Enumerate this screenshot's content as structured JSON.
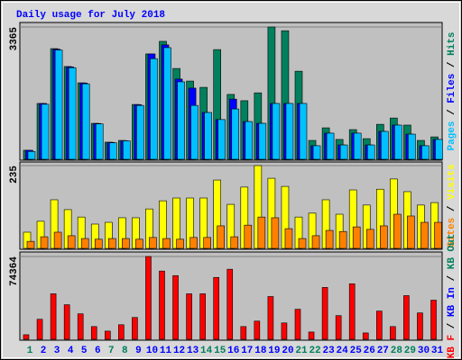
{
  "title": "Daily usage for July 2018",
  "categories": [
    "1",
    "2",
    "3",
    "4",
    "5",
    "6",
    "7",
    "8",
    "9",
    "10",
    "11",
    "12",
    "13",
    "14",
    "15",
    "16",
    "17",
    "18",
    "19",
    "20",
    "21",
    "22",
    "23",
    "24",
    "25",
    "26",
    "27",
    "28",
    "29",
    "30",
    "31"
  ],
  "category_colors": [
    "#00805c",
    "#0000ff",
    "#0000ff",
    "#0000ff",
    "#0000ff",
    "#0000ff",
    "#00805c",
    "#00805c",
    "#0000ff",
    "#0000ff",
    "#0000ff",
    "#0000ff",
    "#0000ff",
    "#00805c",
    "#00805c",
    "#0000ff",
    "#0000ff",
    "#0000ff",
    "#0000ff",
    "#0000ff",
    "#00805c",
    "#00805c",
    "#0000ff",
    "#0000ff",
    "#0000ff",
    "#0000ff",
    "#0000ff",
    "#00805c",
    "#00805c",
    "#0000ff",
    "#0000ff"
  ],
  "legend_separator": " / ",
  "chart_data": [
    {
      "type": "bar",
      "ylim": [
        0,
        3365
      ],
      "yticks": [
        3365
      ],
      "series": [
        {
          "name": "Hits",
          "color": "#00805c",
          "values": [
            230,
            1420,
            2815,
            2360,
            1945,
            915,
            435,
            480,
            1395,
            2680,
            3000,
            2310,
            1990,
            1830,
            2790,
            1650,
            1490,
            1690,
            3365,
            3270,
            2240,
            480,
            800,
            505,
            755,
            525,
            890,
            1050,
            870,
            480,
            570
          ]
        },
        {
          "name": "Files",
          "color": "#0000ff",
          "values": [
            229,
            1420,
            2800,
            2350,
            1940,
            910,
            430,
            475,
            1390,
            2680,
            2910,
            2040,
            1810,
            1190,
            1010,
            1530,
            960,
            915,
            1420,
            1420,
            1420,
            345,
            665,
            365,
            665,
            365,
            710,
            870,
            640,
            345,
            505
          ]
        },
        {
          "name": "Pages",
          "color": "#00c0ff",
          "values": [
            200,
            1400,
            2780,
            2330,
            1920,
            900,
            420,
            470,
            1370,
            2560,
            2840,
            1970,
            1370,
            1190,
            1010,
            1280,
            960,
            915,
            1420,
            1420,
            1420,
            345,
            665,
            365,
            665,
            365,
            710,
            870,
            640,
            345,
            505
          ]
        }
      ]
    },
    {
      "type": "bar",
      "ylim": [
        0,
        235
      ],
      "yticks": [
        235
      ],
      "series": [
        {
          "name": "Visits",
          "color": "#ffff00",
          "values": [
            46,
            77,
            138,
            110,
            89,
            69,
            74,
            87,
            87,
            112,
            135,
            143,
            143,
            143,
            194,
            125,
            174,
            235,
            199,
            176,
            89,
            100,
            138,
            97,
            166,
            123,
            168,
            197,
            161,
            123,
            130
          ]
        },
        {
          "name": "Sites",
          "color": "#ff8000",
          "values": [
            20,
            33,
            46,
            36,
            28,
            26,
            28,
            28,
            26,
            31,
            28,
            26,
            31,
            31,
            64,
            33,
            66,
            89,
            87,
            56,
            28,
            36,
            51,
            48,
            61,
            54,
            64,
            97,
            92,
            74,
            74
          ]
        }
      ]
    },
    {
      "type": "bar",
      "ylim": [
        0,
        74364
      ],
      "yticks": [
        74364
      ],
      "series": [
        {
          "name": "KB F",
          "color": "#ff0000",
          "values": [
            4090,
            17980,
            40860,
            31050,
            22880,
            11440,
            7350,
            13070,
            19610,
            74364,
            61290,
            57200,
            40860,
            40860,
            55570,
            62920,
            11440,
            16340,
            38410,
            14710,
            26970,
            6540,
            46580,
            21250,
            49850,
            5720,
            25330,
            11440,
            39230,
            23700,
            35140
          ]
        }
      ],
      "extra_legend": [
        {
          "name": "KB In",
          "color": "#0000ff"
        },
        {
          "name": "KB Out",
          "color": "#00805c"
        }
      ]
    }
  ]
}
